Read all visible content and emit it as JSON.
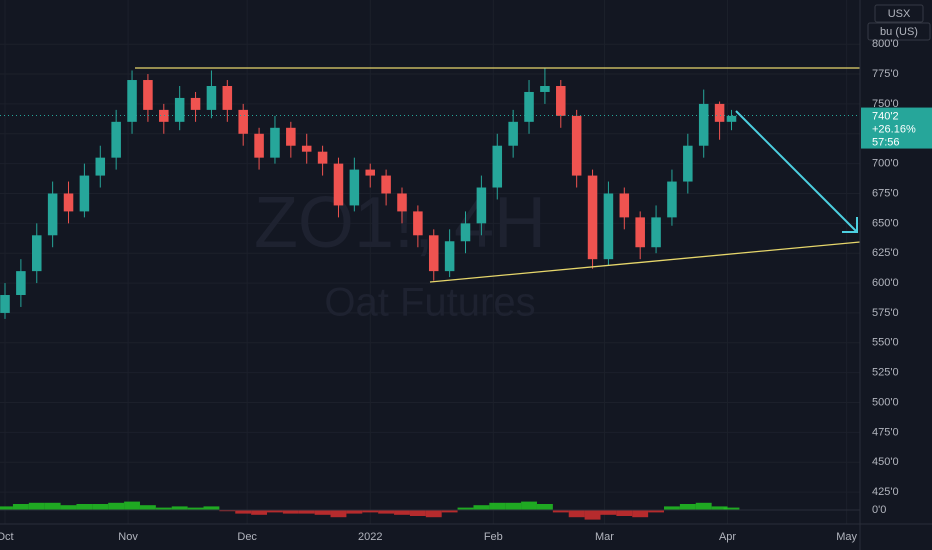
{
  "chart_data": {
    "type": "candlestick",
    "watermark": "ZO1!, 4H",
    "subtitle": "Oat Futures",
    "currency": "USX",
    "unit": "bu (US)",
    "up_color": "#26a69a",
    "down_color": "#ef5350",
    "grid": true,
    "x": [
      0,
      4,
      8,
      12,
      16,
      20,
      24,
      28,
      32,
      36,
      40,
      44,
      48,
      52,
      56,
      60,
      64,
      68,
      72,
      76,
      80,
      84,
      88,
      92,
      96,
      100,
      104,
      108,
      112,
      116,
      120,
      124,
      128,
      132,
      136,
      140,
      144,
      148,
      152,
      156,
      160,
      164,
      168,
      172,
      176,
      180,
      183
    ],
    "open": [
      575,
      590,
      610,
      640,
      675,
      660,
      690,
      705,
      735,
      770,
      745,
      735,
      755,
      745,
      765,
      745,
      725,
      705,
      730,
      715,
      710,
      700,
      665,
      695,
      690,
      675,
      660,
      640,
      610,
      635,
      650,
      680,
      715,
      735,
      760,
      765,
      740,
      690,
      620,
      675,
      655,
      630,
      655,
      685,
      715,
      750,
      735
    ],
    "high": [
      600,
      620,
      650,
      685,
      685,
      700,
      715,
      745,
      778,
      775,
      750,
      765,
      760,
      778,
      770,
      750,
      730,
      740,
      735,
      725,
      715,
      705,
      705,
      700,
      695,
      680,
      665,
      645,
      645,
      660,
      690,
      725,
      745,
      770,
      780,
      770,
      745,
      695,
      685,
      680,
      660,
      665,
      695,
      725,
      762,
      752,
      745
    ],
    "low": [
      570,
      580,
      600,
      630,
      650,
      655,
      680,
      695,
      725,
      735,
      725,
      728,
      735,
      738,
      735,
      715,
      695,
      700,
      705,
      700,
      690,
      655,
      660,
      680,
      665,
      650,
      630,
      602,
      605,
      625,
      640,
      670,
      705,
      725,
      750,
      730,
      680,
      612,
      615,
      645,
      620,
      625,
      648,
      675,
      705,
      720,
      728
    ],
    "close": [
      590,
      610,
      640,
      675,
      660,
      690,
      705,
      735,
      770,
      745,
      735,
      755,
      745,
      765,
      745,
      725,
      705,
      730,
      715,
      710,
      700,
      665,
      695,
      690,
      675,
      660,
      640,
      610,
      635,
      650,
      680,
      715,
      735,
      760,
      765,
      740,
      690,
      620,
      675,
      655,
      630,
      655,
      685,
      715,
      750,
      735,
      740
    ],
    "xlim": [
      -1.26,
      215.37
    ],
    "xticks": [
      {
        "value": 0,
        "label": "Oct"
      },
      {
        "value": 31,
        "label": "Nov"
      },
      {
        "value": 61,
        "label": "Dec"
      },
      {
        "value": 92,
        "label": "2022"
      },
      {
        "value": 123,
        "label": "Feb"
      },
      {
        "value": 151,
        "label": "Mar"
      },
      {
        "value": 182,
        "label": "Apr"
      },
      {
        "value": 212,
        "label": "May"
      }
    ],
    "ylim": [
      410,
      837
    ],
    "yticks": [
      {
        "value": 800,
        "label": "800'0"
      },
      {
        "value": 775,
        "label": "775'0"
      },
      {
        "value": 750,
        "label": "750'0"
      },
      {
        "value": 725,
        "label": "725'0"
      },
      {
        "value": 700,
        "label": "700'0"
      },
      {
        "value": 675,
        "label": "675'0"
      },
      {
        "value": 650,
        "label": "650'0"
      },
      {
        "value": 625,
        "label": "625'0"
      },
      {
        "value": 600,
        "label": "600'0"
      },
      {
        "value": 575,
        "label": "575'0"
      },
      {
        "value": 550,
        "label": "550'0"
      },
      {
        "value": 525,
        "label": "525'0"
      },
      {
        "value": 500,
        "label": "500'0"
      },
      {
        "value": 475,
        "label": "475'0"
      },
      {
        "value": 450,
        "label": "450'0"
      },
      {
        "value": 425,
        "label": "425'0"
      }
    ],
    "last_price": {
      "value": 740.25,
      "label": "740'2"
    },
    "change_label": "+26.16%",
    "countdown": "57:56",
    "indicator": {
      "values": [
        3,
        5,
        6,
        6,
        4,
        5,
        5,
        6,
        7,
        4,
        2,
        3,
        2,
        3,
        -1,
        -3,
        -4,
        -2,
        -3,
        -3,
        -4,
        -6,
        -3,
        -2,
        -3,
        -4,
        -5,
        -6,
        -2,
        2,
        4,
        6,
        6,
        7,
        5,
        -2,
        -6,
        -8,
        -4,
        -5,
        -6,
        -2,
        3,
        5,
        6,
        3,
        2
      ],
      "ylim": [
        -10,
        10
      ],
      "yticks": [
        {
          "value": 0,
          "label": "0'0"
        }
      ]
    }
  }
}
